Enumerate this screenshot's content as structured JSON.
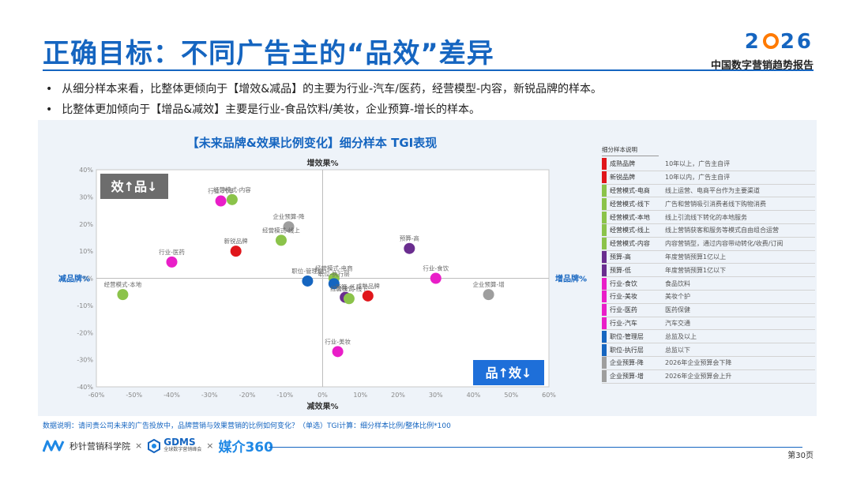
{
  "header": {
    "title": "正确目标：不同广告主的“品效”差异",
    "brand_year_a": "2",
    "brand_year_b": "26",
    "brand_sub": "中国数字营销趋势报告"
  },
  "bullets": [
    "从细分样本来看，比整体更倾向于【增效&减品】的主要为行业-汽车/医药，经营模型-内容，新锐品牌的样本。",
    "比整体更加倾向于【增品&减效】主要是行业-食品饮料/美妆，企业预算-增长的样本。"
  ],
  "chart_data": {
    "type": "scatter",
    "title": "【未来品牌&效果比例变化】细分样本  TGI表现",
    "x_axis": {
      "min": -60,
      "max": 60,
      "ticks": [
        "-60%",
        "-50%",
        "-40%",
        "-30%",
        "-20%",
        "-10%",
        "0%",
        "10%",
        "20%",
        "30%",
        "40%",
        "50%",
        "60%"
      ]
    },
    "y_axis": {
      "min": -40,
      "max": 40,
      "ticks": [
        "40%",
        "30%",
        "20%",
        "10%",
        "0%",
        "-10%",
        "-20%",
        "-30%",
        "-40%"
      ]
    },
    "axis_labels": {
      "top": "增效果%",
      "bottom": "减效果%",
      "left": "减品牌%",
      "right": "增品牌%"
    },
    "quadrant_boxes": {
      "top_left": "效↑品↓",
      "bottom_right": "品↑效↓"
    },
    "points": [
      {
        "label": "经营模式-内容",
        "x": -24,
        "y": 29,
        "color": "#8bc34a"
      },
      {
        "label": "行业-汽车",
        "x": -27,
        "y": 28.5,
        "color": "#e91ec8"
      },
      {
        "label": "企业预算-降",
        "x": -9,
        "y": 19,
        "color": "#9e9e9e"
      },
      {
        "label": "经营模式-线上",
        "x": -11,
        "y": 14,
        "color": "#8bc34a"
      },
      {
        "label": "新锐品牌",
        "x": -23,
        "y": 10,
        "color": "#e0161b"
      },
      {
        "label": "行业-医药",
        "x": -40,
        "y": 6,
        "color": "#e91ec8"
      },
      {
        "label": "经营模式-本地",
        "x": -53,
        "y": -6,
        "color": "#8bc34a"
      },
      {
        "label": "预算-高",
        "x": 23,
        "y": 11,
        "color": "#6a2d8f"
      },
      {
        "label": "行业-食饮",
        "x": 30,
        "y": 0,
        "color": "#e91ec8"
      },
      {
        "label": "企业预算-增",
        "x": 44,
        "y": -6,
        "color": "#9e9e9e"
      },
      {
        "label": "职位-管理层",
        "x": -4,
        "y": -1,
        "color": "#1565c0"
      },
      {
        "label": "经营模式-电商",
        "x": 3,
        "y": 0,
        "color": "#8bc34a"
      },
      {
        "label": "职位-执行层",
        "x": 3,
        "y": -2,
        "color": "#1565c0"
      },
      {
        "label": "预算-低",
        "x": 6,
        "y": -7,
        "color": "#6a2d8f"
      },
      {
        "label": "经营模式-线下",
        "x": 7,
        "y": -7.5,
        "color": "#8bc34a"
      },
      {
        "label": "成熟品牌",
        "x": 12,
        "y": -6.5,
        "color": "#e0161b"
      },
      {
        "label": "行业-美妆",
        "x": 4,
        "y": -27,
        "color": "#e91ec8"
      }
    ]
  },
  "legend": {
    "header": "细分样本说明",
    "items": [
      {
        "name": "成熟品牌",
        "desc": "10年以上，广告主自评",
        "color": "#e0161b"
      },
      {
        "name": "新锐品牌",
        "desc": "10年以内，广告主自评",
        "color": "#e0161b"
      },
      {
        "name": "经营模式-电商",
        "desc": "线上运营、电商平台作为主要渠道",
        "color": "#8bc34a"
      },
      {
        "name": "经营模式-线下",
        "desc": "广告和营销吸引消费者线下购物消费",
        "color": "#8bc34a"
      },
      {
        "name": "经营模式-本地",
        "desc": "线上引流线下转化的本地服务",
        "color": "#8bc34a"
      },
      {
        "name": "经营模式-线上",
        "desc": "线上营销获客和服务等模式自由组合运营",
        "color": "#8bc34a"
      },
      {
        "name": "经营模式-内容",
        "desc": "内容营销型，通过内容带动转化/收费/订阅",
        "color": "#8bc34a"
      },
      {
        "name": "预算-高",
        "desc": "年度营销预算1亿以上",
        "color": "#6a2d8f"
      },
      {
        "name": "预算-低",
        "desc": "年度营销预算1亿以下",
        "color": "#6a2d8f"
      },
      {
        "name": "行业-食饮",
        "desc": "食品饮料",
        "color": "#e91ec8"
      },
      {
        "name": "行业-美妆",
        "desc": "美妆个护",
        "color": "#e91ec8"
      },
      {
        "name": "行业-医药",
        "desc": "医药保健",
        "color": "#e91ec8"
      },
      {
        "name": "行业-汽车",
        "desc": "汽车交通",
        "color": "#e91ec8"
      },
      {
        "name": "职位-管理层",
        "desc": "总监及以上",
        "color": "#1565c0"
      },
      {
        "name": "职位-执行层",
        "desc": "总监以下",
        "color": "#1565c0"
      },
      {
        "name": "企业预算-降",
        "desc": "2026年企业预算会下降",
        "color": "#9e9e9e"
      },
      {
        "name": "企业预算-增",
        "desc": "2026年企业预算会上升",
        "color": "#9e9e9e"
      }
    ]
  },
  "note": "数据说明：请问贵公司未来的广告投放中，品牌营销与效果营销的比例如何变化？（单选）TGI计算：细分样本比例/整体比例*100",
  "footer": {
    "logo1": "秒针营销科学院",
    "sep": "×",
    "logo2": "GDMS",
    "logo2_sub": "全球数字营销峰会",
    "logo3": "媒介360",
    "page": "第30页"
  }
}
